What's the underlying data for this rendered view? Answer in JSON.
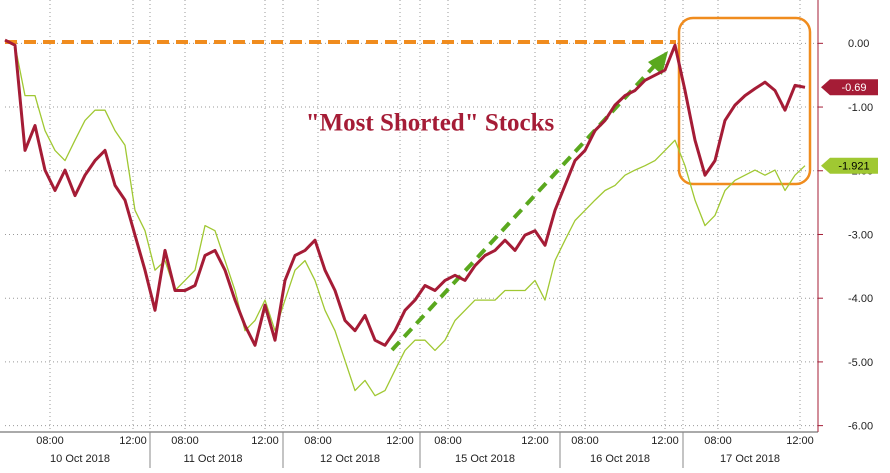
{
  "chart_data": {
    "type": "line",
    "annotation": "\"Most Shorted\" Stocks",
    "ylim": [
      -6.1,
      0.68
    ],
    "yticks": [
      {
        "value": 0,
        "label": "0.00"
      },
      {
        "value": -1,
        "label": "-1.00"
      },
      {
        "value": -2,
        "label": "-2.00"
      },
      {
        "value": -3,
        "label": "-3.00"
      },
      {
        "value": -4,
        "label": "-4.00"
      },
      {
        "value": -5,
        "label": "-5.00"
      },
      {
        "value": -6,
        "label": "-6.00"
      }
    ],
    "time_labels": [
      "08:00",
      "12:00",
      "08:00",
      "12:00",
      "08:00",
      "12:00",
      "08:00",
      "12:00",
      "08:00",
      "12:00",
      "08:00",
      "12:00"
    ],
    "day_labels": [
      "10 Oct 2018",
      "11 Oct 2018",
      "12 Oct 2018",
      "15 Oct 2018",
      "16 Oct 2018",
      "17 Oct 2018"
    ],
    "grid": true,
    "series": [
      {
        "color": "#a0c832",
        "values": [
          0.05,
          -0.03,
          -0.82,
          -0.82,
          -1.37,
          -1.68,
          -1.84,
          -1.52,
          -1.21,
          -1.05,
          -1.05,
          -1.37,
          -1.6,
          -2.62,
          -2.94,
          -3.56,
          -3.41,
          -3.88,
          -3.72,
          -3.56,
          -2.86,
          -2.94,
          -3.41,
          -3.88,
          -4.51,
          -4.35,
          -4.03,
          -4.51,
          -4.03,
          -3.56,
          -3.41,
          -3.72,
          -4.19,
          -4.51,
          -4.98,
          -5.45,
          -5.29,
          -5.53,
          -5.45,
          -5.13,
          -4.82,
          -4.66,
          -4.66,
          -4.82,
          -4.66,
          -4.35,
          -4.19,
          -4.03,
          -4.03,
          -4.03,
          -3.88,
          -3.88,
          -3.88,
          -3.72,
          -4.03,
          -3.41,
          -3.09,
          -2.78,
          -2.62,
          -2.46,
          -2.31,
          -2.23,
          -2.07,
          -1.99,
          -1.92,
          -1.84,
          -1.68,
          -1.52,
          -1.92,
          -2.46,
          -2.86,
          -2.7,
          -2.31,
          -2.15,
          -2.07,
          -1.99,
          -2.07,
          -1.99,
          -2.31,
          -2.07,
          -1.921
        ]
      },
      {
        "color": "#a51c36",
        "values": [
          0.05,
          -0.03,
          -1.68,
          -1.29,
          -1.99,
          -2.31,
          -1.99,
          -2.39,
          -2.07,
          -1.84,
          -1.68,
          -2.23,
          -2.46,
          -3.01,
          -3.56,
          -4.19,
          -3.25,
          -3.88,
          -3.88,
          -3.8,
          -3.33,
          -3.25,
          -3.56,
          -4.03,
          -4.43,
          -4.74,
          -4.11,
          -4.66,
          -3.72,
          -3.33,
          -3.25,
          -3.09,
          -3.56,
          -3.88,
          -4.35,
          -4.51,
          -4.27,
          -4.66,
          -4.74,
          -4.51,
          -4.19,
          -4.03,
          -3.8,
          -3.88,
          -3.72,
          -3.64,
          -3.72,
          -3.49,
          -3.33,
          -3.25,
          -3.09,
          -3.25,
          -3.01,
          -2.94,
          -3.17,
          -2.62,
          -2.23,
          -1.84,
          -1.68,
          -1.37,
          -1.21,
          -0.97,
          -0.82,
          -0.74,
          -0.58,
          -0.5,
          -0.42,
          -0.03,
          -0.74,
          -1.52,
          -2.07,
          -1.84,
          -1.21,
          -0.97,
          -0.82,
          -0.71,
          -0.61,
          -0.74,
          -1.05,
          -0.66,
          -0.69
        ]
      }
    ]
  }
}
